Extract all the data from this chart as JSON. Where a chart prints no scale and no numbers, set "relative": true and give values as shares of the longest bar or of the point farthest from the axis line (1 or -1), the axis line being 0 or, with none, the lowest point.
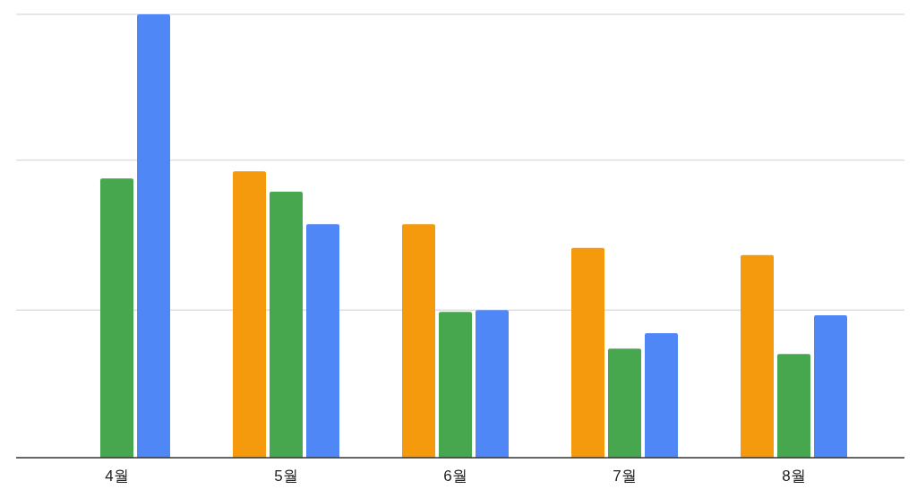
{
  "chart_data": {
    "type": "bar",
    "relative": true,
    "ref_lines": [
      {
        "axis": "y",
        "value": 0.333,
        "color": "#d0d0d0"
      },
      {
        "axis": "y",
        "value": 0.671,
        "color": "#d0d0d0"
      },
      {
        "axis": "y",
        "value": 1.0,
        "color": "#d0d0d0"
      }
    ],
    "categories": [
      "4월",
      "5월",
      "6월",
      "7월",
      "8월"
    ],
    "series": [
      {
        "color": "#f59a0c",
        "values": [
          null,
          0.646,
          0.527,
          0.473,
          0.457
        ]
      },
      {
        "color": "#47a74f",
        "values": [
          0.63,
          0.6,
          0.329,
          0.246,
          0.234
        ]
      },
      {
        "color": "#5087f6",
        "values": [
          1,
          0.527,
          0.333,
          0.281,
          0.321
        ]
      }
    ]
  }
}
